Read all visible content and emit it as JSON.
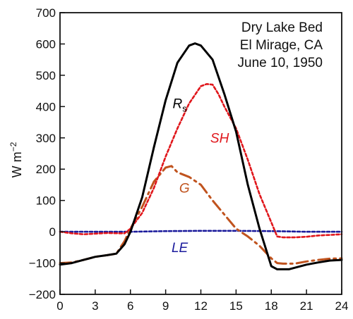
{
  "chart_data": {
    "type": "line",
    "annotation": [
      "Dry Lake Bed",
      "El Mirage, CA",
      "June 10, 1950"
    ],
    "xlabel": "",
    "ylabel": "W m",
    "ylabel_exp": "−2",
    "xlim": [
      0,
      24
    ],
    "ylim": [
      -200,
      700
    ],
    "xticks": [
      0,
      3,
      6,
      9,
      12,
      15,
      18,
      21,
      24
    ],
    "yticks": [
      -200,
      -100,
      0,
      100,
      200,
      300,
      400,
      500,
      600,
      700
    ],
    "grid": false,
    "series": [
      {
        "name": "Rs",
        "label_main": "R",
        "label_sub": "s",
        "color": "#000000",
        "style": "solid",
        "x": [
          0,
          1,
          2,
          3,
          4,
          4.8,
          5.5,
          6,
          7,
          8,
          9,
          10,
          11,
          11.5,
          12,
          13,
          14,
          15,
          16,
          17,
          18,
          18.5,
          19.5,
          21,
          22,
          23,
          24
        ],
        "values": [
          -105,
          -100,
          -90,
          -80,
          -75,
          -70,
          -40,
          0,
          110,
          270,
          420,
          540,
          595,
          602,
          595,
          550,
          440,
          320,
          150,
          10,
          -110,
          -120,
          -120,
          -105,
          -98,
          -92,
          -90
        ]
      },
      {
        "name": "SH",
        "color": "#e0161b",
        "style": "dotted",
        "x": [
          0,
          1,
          2,
          3,
          4,
          5,
          5.5,
          6,
          7,
          8,
          9,
          10,
          11,
          12,
          12.5,
          13,
          13.5,
          14,
          15,
          16,
          17,
          18,
          18.5,
          19,
          20,
          21,
          22,
          23,
          24
        ],
        "values": [
          0,
          -5,
          -8,
          -6,
          -4,
          -5,
          -5,
          10,
          60,
          140,
          240,
          330,
          410,
          465,
          472,
          470,
          440,
          400,
          330,
          230,
          120,
          30,
          -15,
          -18,
          -18,
          -16,
          -12,
          -10,
          -8
        ]
      },
      {
        "name": "G",
        "color": "#c0531e",
        "style": "dashdot",
        "x": [
          0,
          1,
          2,
          3,
          4,
          4.8,
          5.5,
          6,
          7,
          8,
          9,
          9.5,
          10,
          11,
          12,
          13,
          14,
          15,
          16,
          17,
          18,
          18.5,
          19,
          20,
          21,
          22,
          23,
          24
        ],
        "values": [
          -100,
          -98,
          -90,
          -80,
          -75,
          -70,
          -30,
          10,
          80,
          160,
          205,
          210,
          190,
          175,
          150,
          100,
          55,
          10,
          -15,
          -45,
          -85,
          -100,
          -102,
          -102,
          -95,
          -90,
          -86,
          -85
        ]
      },
      {
        "name": "LE",
        "color": "#1b1b9c",
        "style": "dotted",
        "x": [
          0,
          3,
          6,
          9,
          12,
          15,
          18,
          21,
          24
        ],
        "values": [
          0,
          0,
          0,
          2,
          3,
          3,
          2,
          0,
          0
        ]
      }
    ]
  }
}
